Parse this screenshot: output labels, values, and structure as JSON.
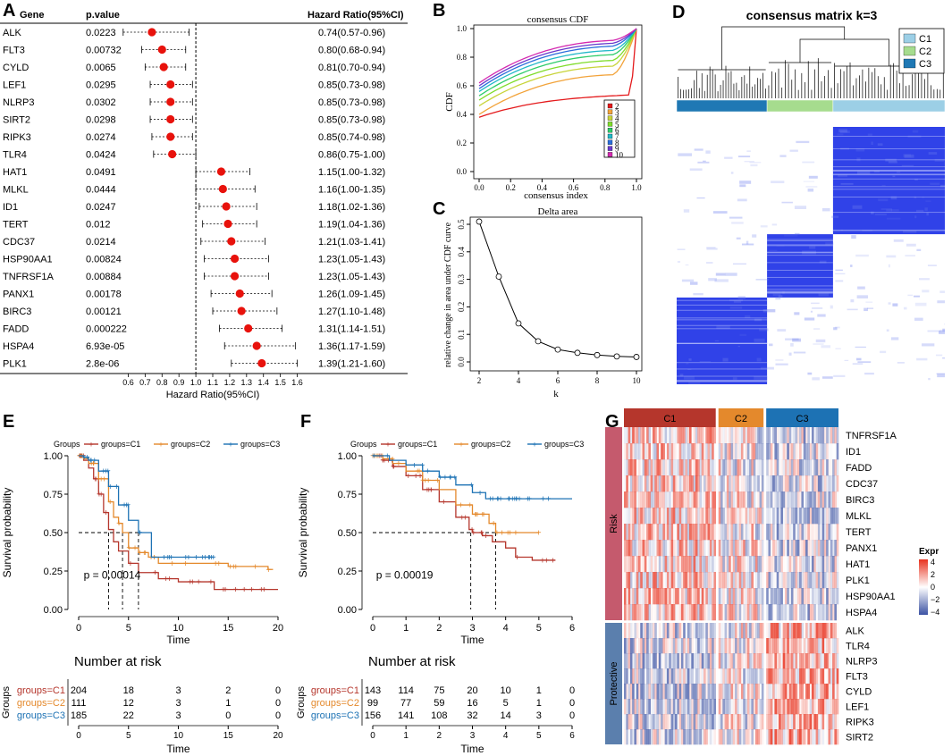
{
  "panels": {
    "A": "A",
    "B": "B",
    "C": "C",
    "D": "D",
    "E": "E",
    "F": "F",
    "G": "G"
  },
  "colors": {
    "c1": "#b5362c",
    "c2": "#e4892c",
    "c3": "#1d72b4",
    "matrix_blue": "#1a2ee6",
    "heat_red": "#e8321e",
    "heat_blue": "#3b52a3",
    "risk_bar": "#c55a6d",
    "protective_bar": "#5b7fad",
    "forest_point": "#e8120c"
  },
  "forest": {
    "col_gene": "Gene",
    "col_p": "p.value",
    "col_hr": "Hazard Ratio(95%CI)",
    "xlabel": "Hazard Ratio(95%CI)",
    "ticks": [
      "0.6",
      "0.7",
      "0.8",
      "0.9",
      "1.0",
      "1.1",
      "1.2",
      "1.3",
      "1.4",
      "1.5",
      "1.6"
    ],
    "rows": [
      {
        "gene": "ALK",
        "p": "0.0223",
        "hr_text": "0.74(0.57-0.96)",
        "hr": 0.74,
        "lo": 0.57,
        "hi": 0.96
      },
      {
        "gene": "FLT3",
        "p": "0.00732",
        "hr_text": "0.80(0.68-0.94)",
        "hr": 0.8,
        "lo": 0.68,
        "hi": 0.94
      },
      {
        "gene": "CYLD",
        "p": "0.0065",
        "hr_text": "0.81(0.70-0.94)",
        "hr": 0.81,
        "lo": 0.7,
        "hi": 0.94
      },
      {
        "gene": "LEF1",
        "p": "0.0295",
        "hr_text": "0.85(0.73-0.98)",
        "hr": 0.85,
        "lo": 0.73,
        "hi": 0.98
      },
      {
        "gene": "NLRP3",
        "p": "0.0302",
        "hr_text": "0.85(0.73-0.98)",
        "hr": 0.85,
        "lo": 0.73,
        "hi": 0.98
      },
      {
        "gene": "SIRT2",
        "p": "0.0298",
        "hr_text": "0.85(0.73-0.98)",
        "hr": 0.85,
        "lo": 0.73,
        "hi": 0.98
      },
      {
        "gene": "RIPK3",
        "p": "0.0274",
        "hr_text": "0.85(0.74-0.98)",
        "hr": 0.85,
        "lo": 0.74,
        "hi": 0.98
      },
      {
        "gene": "TLR4",
        "p": "0.0424",
        "hr_text": "0.86(0.75-1.00)",
        "hr": 0.86,
        "lo": 0.75,
        "hi": 1.0
      },
      {
        "gene": "HAT1",
        "p": "0.0491",
        "hr_text": "1.15(1.00-1.32)",
        "hr": 1.15,
        "lo": 1.0,
        "hi": 1.32
      },
      {
        "gene": "MLKL",
        "p": "0.0444",
        "hr_text": "1.16(1.00-1.35)",
        "hr": 1.16,
        "lo": 1.0,
        "hi": 1.35
      },
      {
        "gene": "ID1",
        "p": "0.0247",
        "hr_text": "1.18(1.02-1.36)",
        "hr": 1.18,
        "lo": 1.02,
        "hi": 1.36
      },
      {
        "gene": "TERT",
        "p": "0.012",
        "hr_text": "1.19(1.04-1.36)",
        "hr": 1.19,
        "lo": 1.04,
        "hi": 1.36
      },
      {
        "gene": "CDC37",
        "p": "0.0214",
        "hr_text": "1.21(1.03-1.41)",
        "hr": 1.21,
        "lo": 1.03,
        "hi": 1.41
      },
      {
        "gene": "HSP90AA1",
        "p": "0.00824",
        "hr_text": "1.23(1.05-1.43)",
        "hr": 1.23,
        "lo": 1.05,
        "hi": 1.43
      },
      {
        "gene": "TNFRSF1A",
        "p": "0.00884",
        "hr_text": "1.23(1.05-1.43)",
        "hr": 1.23,
        "lo": 1.05,
        "hi": 1.43
      },
      {
        "gene": "PANX1",
        "p": "0.00178",
        "hr_text": "1.26(1.09-1.45)",
        "hr": 1.26,
        "lo": 1.09,
        "hi": 1.45
      },
      {
        "gene": "BIRC3",
        "p": "0.00121",
        "hr_text": "1.27(1.10-1.48)",
        "hr": 1.27,
        "lo": 1.1,
        "hi": 1.48
      },
      {
        "gene": "FADD",
        "p": "0.000222",
        "hr_text": "1.31(1.14-1.51)",
        "hr": 1.31,
        "lo": 1.14,
        "hi": 1.51
      },
      {
        "gene": "HSPA4",
        "p": "6.93e-05",
        "hr_text": "1.36(1.17-1.59)",
        "hr": 1.36,
        "lo": 1.17,
        "hi": 1.59
      },
      {
        "gene": "PLK1",
        "p": "2.8e-06",
        "hr_text": "1.39(1.21-1.60)",
        "hr": 1.39,
        "lo": 1.21,
        "hi": 1.6
      }
    ]
  },
  "cdf": {
    "title": "consensus CDF",
    "xlabel": "consensus index",
    "ylabel": "CDF",
    "xticks": [
      "0.0",
      "0.2",
      "0.4",
      "0.6",
      "0.8",
      "1.0"
    ],
    "yticks": [
      "0.0",
      "0.2",
      "0.4",
      "0.6",
      "0.8",
      "1.0"
    ],
    "legend": [
      "2",
      "3",
      "4",
      "5",
      "6",
      "7",
      "8",
      "9",
      "10"
    ],
    "legend_colors": [
      "#e41a1c",
      "#f2a33a",
      "#c8d43a",
      "#7fdc2a",
      "#2ecc6a",
      "#22b8c8",
      "#2a6edc",
      "#6a3acc",
      "#d42ab0"
    ],
    "start_values": [
      0.38,
      0.4,
      0.46,
      0.5,
      0.53,
      0.56,
      0.58,
      0.6,
      0.62
    ],
    "plateau_values": [
      0.5,
      0.68,
      0.74,
      0.78,
      0.82,
      0.85,
      0.88,
      0.9,
      0.92
    ]
  },
  "delta": {
    "title": "Delta area",
    "xlabel": "k",
    "ylabel": "relative change in area under CDF curve",
    "xticks": [
      "2",
      "4",
      "6",
      "8",
      "10"
    ],
    "yticks": [
      "0.0",
      "0.1",
      "0.2",
      "0.3",
      "0.4",
      "0.5"
    ],
    "k": [
      2,
      3,
      4,
      5,
      6,
      7,
      8,
      9,
      10
    ],
    "values": [
      0.51,
      0.31,
      0.14,
      0.075,
      0.045,
      0.033,
      0.025,
      0.02,
      0.018
    ]
  },
  "matrix": {
    "title": "consensus matrix k=3",
    "legend": [
      {
        "label": "C1",
        "color": "#9ccfe6"
      },
      {
        "label": "C2",
        "color": "#a6dc8e"
      },
      {
        "label": "C3",
        "color": "#1f78b4"
      }
    ],
    "cluster_fraction": [
      0.417,
      0.246,
      0.337
    ]
  },
  "km_e": {
    "groups_label": "Groups",
    "legend": [
      "groups=C1",
      "groups=C2",
      "groups=C3"
    ],
    "ylabel": "Survival probability",
    "xlabel": "Time",
    "xticks": [
      "0",
      "5",
      "10",
      "15",
      "20"
    ],
    "yticks": [
      "0.00",
      "0.25",
      "0.50",
      "0.75",
      "1.00"
    ],
    "pvalue": "p = 0.00014",
    "risk_title": "Number at risk",
    "risk_groups_label": "Groups",
    "risk_rows": [
      {
        "name": "groups=C1",
        "values": [
          "204",
          "18",
          "3",
          "2",
          "0"
        ]
      },
      {
        "name": "groups=C2",
        "values": [
          "111",
          "12",
          "3",
          "1",
          "0"
        ]
      },
      {
        "name": "groups=C3",
        "values": [
          "185",
          "22",
          "3",
          "0",
          "0"
        ]
      }
    ],
    "medians": [
      3.0,
      4.4,
      6.0
    ],
    "series": [
      {
        "name": "groups=C1",
        "points": [
          [
            0,
            1
          ],
          [
            0.5,
            0.97
          ],
          [
            1,
            0.92
          ],
          [
            1.5,
            0.85
          ],
          [
            2,
            0.75
          ],
          [
            2.5,
            0.63
          ],
          [
            3,
            0.52
          ],
          [
            3.5,
            0.44
          ],
          [
            4,
            0.38
          ],
          [
            5,
            0.3
          ],
          [
            6,
            0.24
          ],
          [
            8,
            0.2
          ],
          [
            10,
            0.18
          ],
          [
            13.6,
            0.18
          ],
          [
            13.6,
            0.13
          ],
          [
            20,
            0.13
          ]
        ]
      },
      {
        "name": "groups=C2",
        "points": [
          [
            0,
            1
          ],
          [
            0.5,
            0.98
          ],
          [
            1,
            0.95
          ],
          [
            2,
            0.85
          ],
          [
            3,
            0.7
          ],
          [
            3.5,
            0.6
          ],
          [
            4,
            0.56
          ],
          [
            4.4,
            0.5
          ],
          [
            5,
            0.4
          ],
          [
            6,
            0.37
          ],
          [
            7,
            0.34
          ],
          [
            8,
            0.3
          ],
          [
            10,
            0.3
          ],
          [
            15,
            0.28
          ],
          [
            19,
            0.26
          ],
          [
            19.5,
            0.26
          ]
        ]
      },
      {
        "name": "groups=C3",
        "points": [
          [
            0,
            1
          ],
          [
            0.5,
            0.99
          ],
          [
            1,
            0.97
          ],
          [
            2,
            0.9
          ],
          [
            3,
            0.8
          ],
          [
            4,
            0.68
          ],
          [
            5,
            0.58
          ],
          [
            6,
            0.5
          ],
          [
            7,
            0.5
          ],
          [
            7.3,
            0.34
          ],
          [
            13.6,
            0.34
          ]
        ]
      }
    ]
  },
  "km_f": {
    "groups_label": "Groups",
    "legend": [
      "groups=C1",
      "groups=C2",
      "groups=C3"
    ],
    "ylabel": "Survival probability",
    "xlabel": "Time",
    "xticks": [
      "0",
      "1",
      "2",
      "3",
      "4",
      "5",
      "6"
    ],
    "yticks": [
      "0.00",
      "0.25",
      "0.50",
      "0.75",
      "1.00"
    ],
    "pvalue": "p = 0.00019",
    "risk_title": "Number at risk",
    "risk_groups_label": "Groups",
    "risk_rows": [
      {
        "name": "groups=C1",
        "values": [
          "143",
          "114",
          "75",
          "20",
          "10",
          "1",
          "0"
        ]
      },
      {
        "name": "groups=C2",
        "values": [
          "99",
          "77",
          "59",
          "16",
          "5",
          "1",
          "0"
        ]
      },
      {
        "name": "groups=C3",
        "values": [
          "156",
          "141",
          "108",
          "32",
          "14",
          "3",
          "0"
        ]
      }
    ],
    "medians": [
      2.95,
      3.7
    ],
    "series": [
      {
        "name": "groups=C1",
        "points": [
          [
            0,
            1
          ],
          [
            0.3,
            0.97
          ],
          [
            0.6,
            0.93
          ],
          [
            1,
            0.87
          ],
          [
            1.5,
            0.78
          ],
          [
            2,
            0.7
          ],
          [
            2.5,
            0.6
          ],
          [
            2.9,
            0.52
          ],
          [
            3,
            0.5
          ],
          [
            3.3,
            0.48
          ],
          [
            3.6,
            0.44
          ],
          [
            4,
            0.4
          ],
          [
            4.3,
            0.34
          ],
          [
            4.8,
            0.32
          ],
          [
            5.5,
            0.32
          ]
        ]
      },
      {
        "name": "groups=C2",
        "points": [
          [
            0,
            1
          ],
          [
            0.3,
            0.98
          ],
          [
            0.6,
            0.95
          ],
          [
            1,
            0.9
          ],
          [
            1.5,
            0.84
          ],
          [
            2,
            0.78
          ],
          [
            2.5,
            0.68
          ],
          [
            3,
            0.62
          ],
          [
            3.5,
            0.56
          ],
          [
            3.7,
            0.5
          ],
          [
            4.5,
            0.5
          ],
          [
            5,
            0.5
          ]
        ]
      },
      {
        "name": "groups=C3",
        "points": [
          [
            0,
            1
          ],
          [
            0.5,
            0.97
          ],
          [
            1,
            0.94
          ],
          [
            1.5,
            0.9
          ],
          [
            2,
            0.86
          ],
          [
            2.5,
            0.81
          ],
          [
            3,
            0.76
          ],
          [
            3.4,
            0.72
          ],
          [
            4,
            0.72
          ],
          [
            5,
            0.72
          ],
          [
            6,
            0.72
          ]
        ]
      }
    ]
  },
  "heatmap": {
    "clusters": [
      {
        "label": "C1",
        "color": "#b5362c",
        "fraction": 0.435
      },
      {
        "label": "C2",
        "color": "#e4892c",
        "fraction": 0.22
      },
      {
        "label": "C3",
        "color": "#1d72b4",
        "fraction": 0.345
      }
    ],
    "risk_label": "Risk",
    "protective_label": "Protective",
    "risk_genes": [
      "TNFRSF1A",
      "ID1",
      "FADD",
      "CDC37",
      "BIRC3",
      "MLKL",
      "TERT",
      "PANX1",
      "HAT1",
      "PLK1",
      "HSP90AA1",
      "HSPA4"
    ],
    "protective_genes": [
      "ALK",
      "TLR4",
      "NLRP3",
      "FLT3",
      "CYLD",
      "LEF1",
      "RIPK3",
      "SIRT2"
    ],
    "legend_title": "Expr",
    "legend_ticks": [
      "4",
      "2",
      "0",
      "−2",
      "−4"
    ]
  }
}
